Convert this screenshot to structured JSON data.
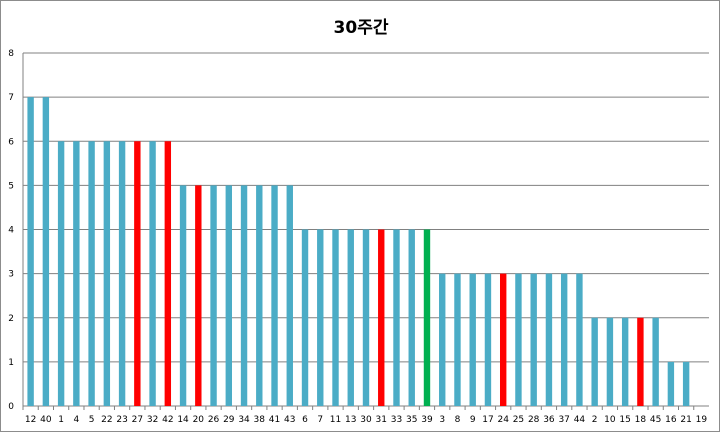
{
  "chart_data": {
    "type": "bar",
    "title": "30주간",
    "xlabel": "",
    "ylabel": "",
    "ylim": [
      0,
      8
    ],
    "yticks": [
      0,
      1,
      2,
      3,
      4,
      5,
      6,
      7,
      8
    ],
    "grid": true,
    "legend": "none",
    "categories": [
      "12",
      "40",
      "1",
      "4",
      "5",
      "22",
      "23",
      "27",
      "32",
      "42",
      "14",
      "20",
      "26",
      "29",
      "34",
      "38",
      "41",
      "43",
      "6",
      "7",
      "11",
      "13",
      "30",
      "31",
      "33",
      "35",
      "39",
      "3",
      "8",
      "9",
      "17",
      "24",
      "25",
      "28",
      "36",
      "37",
      "44",
      "2",
      "10",
      "15",
      "18",
      "45",
      "16",
      "21",
      "19"
    ],
    "values": [
      7,
      7,
      6,
      6,
      6,
      6,
      6,
      6,
      6,
      6,
      5,
      5,
      5,
      5,
      5,
      5,
      5,
      5,
      4,
      4,
      4,
      4,
      4,
      4,
      4,
      4,
      4,
      3,
      3,
      3,
      3,
      3,
      3,
      3,
      3,
      3,
      3,
      2,
      2,
      2,
      2,
      2,
      1,
      1,
      0
    ],
    "bar_colors": [
      "#4bacc6",
      "#4bacc6",
      "#4bacc6",
      "#4bacc6",
      "#4bacc6",
      "#4bacc6",
      "#4bacc6",
      "#ff0000",
      "#4bacc6",
      "#ff0000",
      "#4bacc6",
      "#ff0000",
      "#4bacc6",
      "#4bacc6",
      "#4bacc6",
      "#4bacc6",
      "#4bacc6",
      "#4bacc6",
      "#4bacc6",
      "#4bacc6",
      "#4bacc6",
      "#4bacc6",
      "#4bacc6",
      "#ff0000",
      "#4bacc6",
      "#4bacc6",
      "#00b050",
      "#4bacc6",
      "#4bacc6",
      "#4bacc6",
      "#4bacc6",
      "#ff0000",
      "#4bacc6",
      "#4bacc6",
      "#4bacc6",
      "#4bacc6",
      "#4bacc6",
      "#4bacc6",
      "#4bacc6",
      "#4bacc6",
      "#ff0000",
      "#4bacc6",
      "#4bacc6",
      "#4bacc6",
      "#4bacc6"
    ],
    "colors": {
      "default": "#4bacc6",
      "highlight": "#ff0000",
      "special": "#00b050",
      "grid": "#808080"
    }
  }
}
